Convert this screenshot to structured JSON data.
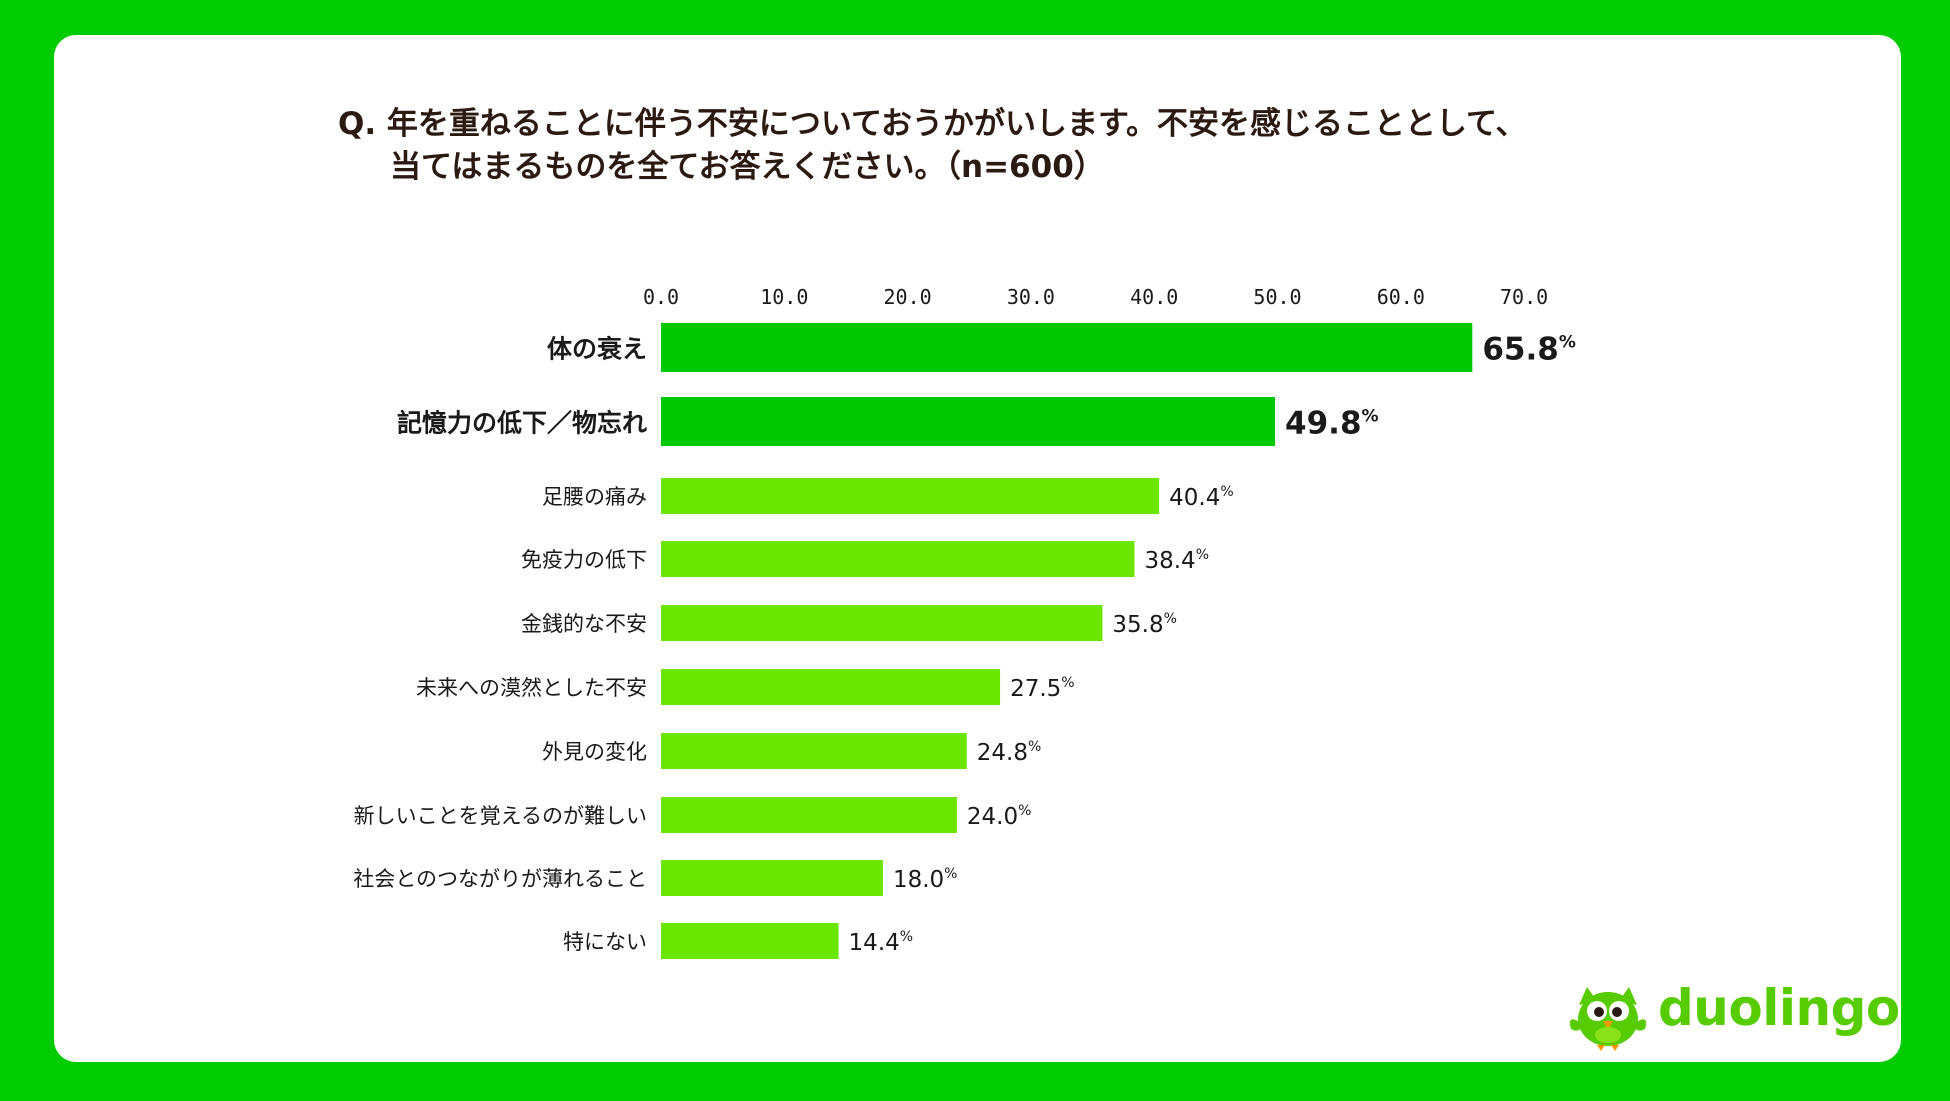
{
  "title_line1": "Q. 年を重ねることに伴う不安についておうかがいします。不安を感じることとして、",
  "title_line2": "当てはまるものを全てお答えください。（n=600）",
  "brand": {
    "name": "duolingo",
    "icon": "duo-owl-mascot-icon",
    "color": "#58cc02"
  },
  "colors": {
    "background": "#00cc00",
    "bar_top": "#00c800",
    "bar": "#6ae600"
  },
  "chart_data": {
    "type": "bar",
    "orientation": "horizontal",
    "categories": [
      "体の衰え",
      "記憶力の低下／物忘れ",
      "足腰の痛み",
      "免疫力の低下",
      "金銭的な不安",
      "未来への漠然とした不安",
      "外見の変化",
      "新しいことを覚えるのが難しい",
      "社会とのつながりが薄れること",
      "特にない"
    ],
    "values": [
      65.8,
      49.8,
      40.4,
      38.4,
      35.8,
      27.5,
      24.8,
      24.0,
      18.0,
      14.4
    ],
    "value_labels": [
      "65.8",
      "49.8",
      "40.4",
      "38.4",
      "35.8",
      "27.5",
      "24.8",
      "24.0",
      "18.0",
      "14.4"
    ],
    "unit": "%",
    "highlighted": [
      0,
      1
    ],
    "xticks": [
      "0.0",
      "10.0",
      "20.0",
      "30.0",
      "40.0",
      "50.0",
      "60.0",
      "70.0"
    ],
    "xlim": [
      0,
      70
    ],
    "axis_position": "top",
    "grid": false
  }
}
